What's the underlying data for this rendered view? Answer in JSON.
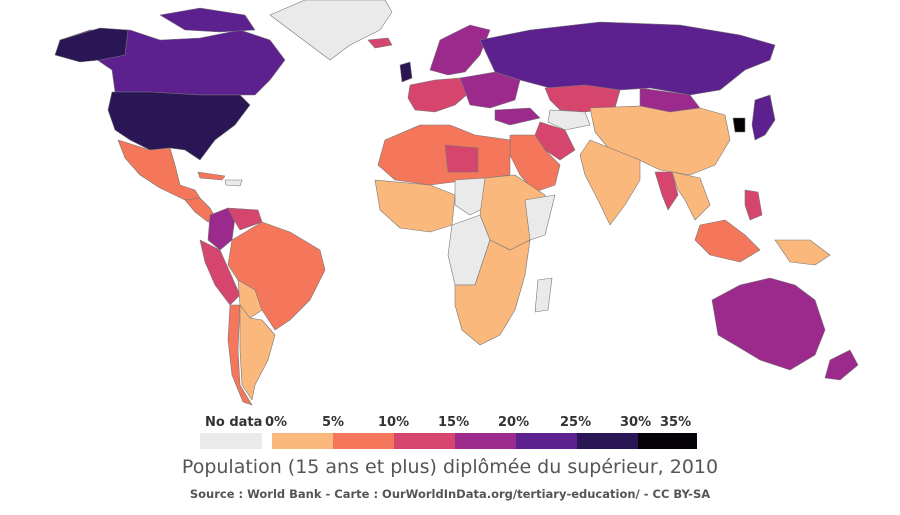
{
  "colors": {
    "no_data": "#eaeaea",
    "bin_0_5": "#fbb87d",
    "bin_5_10": "#f4775b",
    "bin_10_15": "#d6456e",
    "bin_15_20": "#9c2a8d",
    "bin_20_25": "#5c218f",
    "bin_25_30": "#2a1555",
    "bin_30_35": "#050308"
  },
  "legend": {
    "no_data_label": "No data",
    "ticks": [
      "0%",
      "5%",
      "10%",
      "15%",
      "20%",
      "25%",
      "30%",
      "35%"
    ]
  },
  "title": "Population (15 ans et plus) diplômée du supérieur, 2010",
  "source": "Source : World Bank - Carte : OurWorldInData.org/tertiary-education/ - CC BY-SA"
}
